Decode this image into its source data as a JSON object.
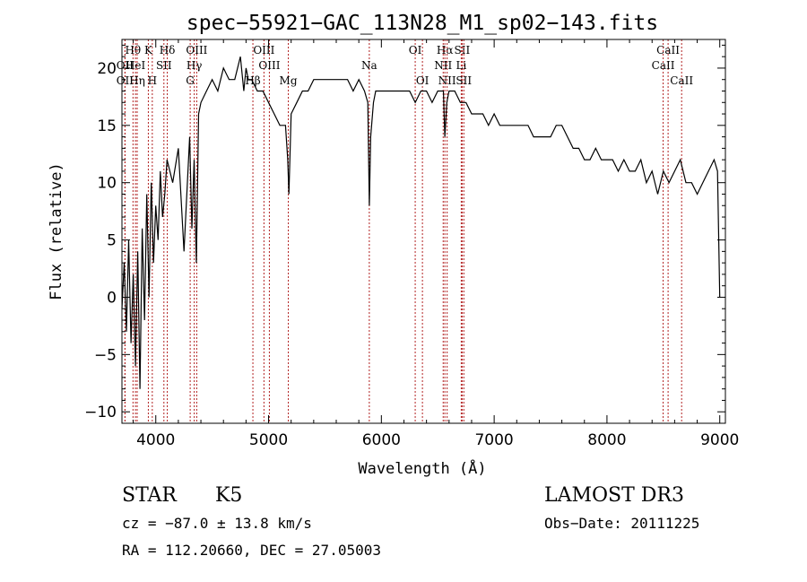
{
  "chart_data": {
    "type": "line",
    "title": "spec−55921−GAC_113N28_M1_sp02−143.fits",
    "xlabel": "Wavelength (Å)",
    "ylabel": "Flux (relative)",
    "xlim": [
      3700,
      9050
    ],
    "ylim": [
      -11,
      22.5
    ],
    "x_ticks": [
      4000,
      5000,
      6000,
      7000,
      8000,
      9000
    ],
    "y_ticks": [
      -10,
      -5,
      0,
      5,
      10,
      15,
      20
    ],
    "y_tick_labels": [
      "−10",
      "−5",
      "0",
      "5",
      "10",
      "15",
      "20"
    ],
    "series": [
      {
        "name": "flux",
        "x": [
          3700,
          3720,
          3740,
          3760,
          3780,
          3800,
          3820,
          3840,
          3860,
          3880,
          3900,
          3920,
          3940,
          3960,
          3980,
          4000,
          4020,
          4040,
          4060,
          4080,
          4100,
          4150,
          4200,
          4250,
          4300,
          4320,
          4340,
          4360,
          4380,
          4400,
          4450,
          4500,
          4550,
          4600,
          4650,
          4700,
          4750,
          4780,
          4800,
          4820,
          4850,
          4900,
          4950,
          5000,
          5050,
          5100,
          5150,
          5170,
          5180,
          5200,
          5250,
          5300,
          5350,
          5400,
          5450,
          5500,
          5550,
          5600,
          5650,
          5700,
          5750,
          5800,
          5850,
          5880,
          5893,
          5905,
          5930,
          5950,
          6000,
          6050,
          6100,
          6150,
          6200,
          6250,
          6300,
          6350,
          6400,
          6450,
          6500,
          6550,
          6563,
          6580,
          6600,
          6650,
          6700,
          6720,
          6750,
          6800,
          6850,
          6900,
          6950,
          7000,
          7050,
          7100,
          7150,
          7200,
          7250,
          7300,
          7350,
          7400,
          7450,
          7500,
          7550,
          7600,
          7650,
          7700,
          7750,
          7800,
          7850,
          7900,
          7950,
          8000,
          8050,
          8100,
          8150,
          8200,
          8250,
          8300,
          8350,
          8400,
          8450,
          8500,
          8550,
          8600,
          8650,
          8700,
          8750,
          8800,
          8850,
          8900,
          8950,
          8980,
          9000
        ],
        "y": [
          -1,
          3,
          -3,
          5,
          -4,
          2,
          -6,
          4,
          -8,
          6,
          -2,
          9,
          0,
          10,
          3,
          8,
          5,
          11,
          7,
          9,
          12,
          10,
          13,
          4,
          14,
          6,
          12,
          3,
          16,
          17,
          18,
          19,
          18,
          20,
          19,
          19,
          21,
          18,
          20,
          19,
          19,
          18,
          18,
          17,
          16,
          15,
          15,
          12,
          9,
          16,
          17,
          18,
          18,
          19,
          19,
          19,
          19,
          19,
          19,
          19,
          18,
          19,
          18,
          17,
          8,
          14,
          17,
          18,
          18,
          18,
          18,
          18,
          18,
          18,
          17,
          18,
          18,
          17,
          18,
          18,
          14,
          17,
          18,
          18,
          17,
          17,
          17,
          16,
          16,
          16,
          15,
          16,
          15,
          15,
          15,
          15,
          15,
          15,
          14,
          14,
          14,
          14,
          15,
          15,
          14,
          13,
          13,
          12,
          12,
          13,
          12,
          12,
          12,
          11,
          12,
          11,
          11,
          12,
          10,
          11,
          9,
          11,
          10,
          11,
          12,
          10,
          10,
          9,
          10,
          11,
          12,
          11,
          0
        ]
      }
    ],
    "line_markers": [
      {
        "label": "Hθ",
        "wl": 3798,
        "row": 1
      },
      {
        "label": "OII",
        "wl": 3727,
        "row": 2
      },
      {
        "label": "OII",
        "wl": 3727,
        "row": 3
      },
      {
        "label": "HeI",
        "wl": 3820,
        "row": 2
      },
      {
        "label": "Hη",
        "wl": 3835,
        "row": 3
      },
      {
        "label": "K",
        "wl": 3934,
        "row": 1
      },
      {
        "label": "SII",
        "wl": 4072,
        "row": 2
      },
      {
        "label": "H",
        "wl": 3969,
        "row": 3
      },
      {
        "label": "Hδ",
        "wl": 4102,
        "row": 1
      },
      {
        "label": "OIII",
        "wl": 4363,
        "row": 1
      },
      {
        "label": "Hγ",
        "wl": 4341,
        "row": 2
      },
      {
        "label": "G",
        "wl": 4305,
        "row": 3
      },
      {
        "label": "OIII",
        "wl": 4959,
        "row": 1
      },
      {
        "label": "OIII",
        "wl": 5007,
        "row": 2
      },
      {
        "label": "Hβ",
        "wl": 4861,
        "row": 3
      },
      {
        "label": "Mg",
        "wl": 5175,
        "row": 3
      },
      {
        "label": "Na",
        "wl": 5893,
        "row": 2
      },
      {
        "label": "OI",
        "wl": 6300,
        "row": 1
      },
      {
        "label": "OI",
        "wl": 6364,
        "row": 3
      },
      {
        "label": "Hα",
        "wl": 6563,
        "row": 1
      },
      {
        "label": "NII",
        "wl": 6548,
        "row": 2
      },
      {
        "label": "NII",
        "wl": 6583,
        "row": 3
      },
      {
        "label": "SII",
        "wl": 6716,
        "row": 1
      },
      {
        "label": "Li",
        "wl": 6708,
        "row": 2
      },
      {
        "label": "SII",
        "wl": 6731,
        "row": 3
      },
      {
        "label": "CaII",
        "wl": 8542,
        "row": 1
      },
      {
        "label": "CaII",
        "wl": 8498,
        "row": 2
      },
      {
        "label": "CaII",
        "wl": 8662,
        "row": 3
      }
    ]
  },
  "info": {
    "obj_class": "STAR",
    "subclass": "K5",
    "survey": "LAMOST DR3",
    "redshift": "cz = −87.0 ± 13.8 km/s",
    "obs_date": "Obs−Date: 20111225",
    "coords": "RA = 112.20660, DEC =  27.05003"
  },
  "colors": {
    "line_marker": "#b22222",
    "spectrum": "#000000",
    "axes": "#000000"
  }
}
